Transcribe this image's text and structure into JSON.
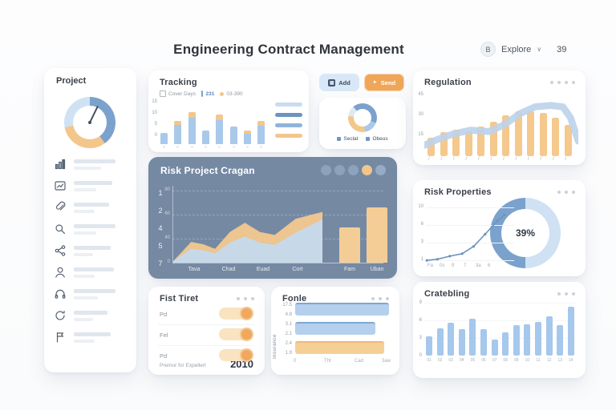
{
  "colors": {
    "blue": "#7ba2cc",
    "blue_light": "#a9c9ea",
    "orange": "#f0a659",
    "orange_light": "#f3c68b",
    "slate_panel": "#7589a3"
  },
  "header": {
    "title": "Engineering Contract Management",
    "user_badge": "B",
    "user_label": "Explore",
    "chevron": "∨",
    "count": "39"
  },
  "sidebar": {
    "title": "Project",
    "items": [
      {
        "icon": "bar-chart-icon",
        "w1": 52,
        "w2": 34
      },
      {
        "icon": "report-icon",
        "w1": 48,
        "w2": 28
      },
      {
        "icon": "paperclip-icon",
        "w1": 44,
        "w2": 26
      },
      {
        "icon": "search-icon",
        "w1": 52,
        "w2": 28
      },
      {
        "icon": "share-icon",
        "w1": 46,
        "w2": 24
      },
      {
        "icon": "user-icon",
        "w1": 50,
        "w2": 26
      },
      {
        "icon": "headset-icon",
        "w1": 52,
        "w2": 30
      },
      {
        "icon": "refresh-icon",
        "w1": 42,
        "w2": 24
      },
      {
        "icon": "flag-icon",
        "w1": 46,
        "w2": 26
      }
    ]
  },
  "panels": {
    "tracking": {
      "title": "Tracking",
      "legend": [
        {
          "label": "Cover Days"
        },
        {
          "label": "231"
        },
        {
          "label": "03-390"
        }
      ],
      "y_ticks": [
        "15",
        "10",
        "5",
        "0"
      ],
      "bars_blue": [
        26,
        46,
        64,
        33,
        58,
        43,
        25,
        45
      ],
      "bars_orange": [
        0,
        10,
        13,
        0,
        14,
        0,
        8,
        12
      ],
      "side_bars": [
        "#c9dcf0",
        "#6b94c0",
        "#8fb4da",
        "#f3c68b"
      ]
    },
    "quick": {
      "buttons": [
        {
          "label": "Add",
          "icon": "grid-icon"
        },
        {
          "label": "Send",
          "icon": "send-icon"
        }
      ],
      "donut_legend": [
        {
          "label": "Seclat"
        },
        {
          "label": "Obeus"
        }
      ]
    },
    "regulation": {
      "title": "Regulation",
      "y_ticks": [
        "45",
        "30",
        "15"
      ],
      "bars": [
        28,
        36,
        40,
        38,
        45,
        52,
        62,
        68,
        68,
        66,
        58,
        48
      ],
      "band": [
        [
          0,
          82
        ],
        [
          8,
          74
        ],
        [
          18,
          66
        ],
        [
          30,
          60
        ],
        [
          42,
          62
        ],
        [
          52,
          52
        ],
        [
          62,
          36
        ],
        [
          72,
          26
        ],
        [
          82,
          24
        ],
        [
          90,
          26
        ],
        [
          95,
          42
        ],
        [
          100,
          76
        ]
      ],
      "x_ticks": [
        "/",
        "/",
        "/",
        "/",
        "/",
        "/",
        "/",
        "/",
        "/",
        "/",
        "/",
        "/"
      ]
    },
    "risk_main": {
      "title": "Risk Project Cragan",
      "rail": [
        "1",
        "2",
        "4",
        "5",
        "7"
      ],
      "y_ticks": [
        "80",
        "60",
        "40",
        "0"
      ],
      "x_labels": [
        "Tava",
        "Chad",
        "Euad",
        "Cort",
        "Fam",
        "Uban"
      ],
      "area_x": [
        0,
        12,
        20,
        28,
        38,
        48,
        58,
        68,
        82,
        100
      ],
      "area_blue": [
        2,
        18,
        16,
        12,
        26,
        34,
        26,
        23,
        39,
        56
      ],
      "area_total": [
        2,
        27,
        24,
        18,
        40,
        52,
        40,
        36,
        57,
        66
      ],
      "bars": [
        46,
        72
      ],
      "dots": [
        "#8da2bb",
        "#8da2bb",
        "#8da2bb",
        "#f1c68c",
        "#96abc4"
      ]
    },
    "risk_props": {
      "title": "Risk Properties",
      "center_value": "39%",
      "y_ticks": [
        "10",
        "6",
        "3",
        "1"
      ],
      "x_ticks": [
        "Fa",
        "0s",
        "9",
        "7",
        "3a",
        "6"
      ],
      "line": [
        [
          2,
          95
        ],
        [
          14,
          93
        ],
        [
          28,
          88
        ],
        [
          42,
          84
        ],
        [
          55,
          72
        ],
        [
          68,
          52
        ],
        [
          82,
          30
        ],
        [
          90,
          20
        ]
      ]
    },
    "fist": {
      "title": "Fist Tiret",
      "rows": [
        {
          "label": "Pd"
        },
        {
          "label": "Fel"
        },
        {
          "label": "Pd"
        }
      ],
      "footer_label": "Premur for Expellert",
      "footer_value": "2010"
    },
    "fonle": {
      "title": "Fonle",
      "ylabel": "Insurance",
      "y_ticks": [
        "17.5",
        "4.8",
        "3.1",
        "2.1",
        "2.4",
        "1.9"
      ],
      "bars": [
        {
          "w": 96,
          "color": "#b4d0ec",
          "edge": "#7fa6d2"
        },
        {
          "w": 82,
          "color": "#b4d0ec",
          "edge": "#7fa6d2"
        },
        {
          "w": 91,
          "color": "#f6cf96",
          "edge": "#eeb878"
        }
      ],
      "x_ticks": [
        "0",
        "Tht",
        "Cad",
        "3aw"
      ]
    },
    "cratebling": {
      "title": "Cratebling",
      "values": [
        36,
        50,
        60,
        48,
        68,
        48,
        30,
        42,
        56,
        58,
        62,
        72,
        56,
        90
      ],
      "x_ticks": [
        "01",
        "02",
        "03",
        "04",
        "05",
        "06",
        "07",
        "08",
        "09",
        "10",
        "11",
        "12",
        "13",
        "14"
      ],
      "y_ticks": [
        "9",
        "6",
        "3",
        "0"
      ]
    }
  }
}
